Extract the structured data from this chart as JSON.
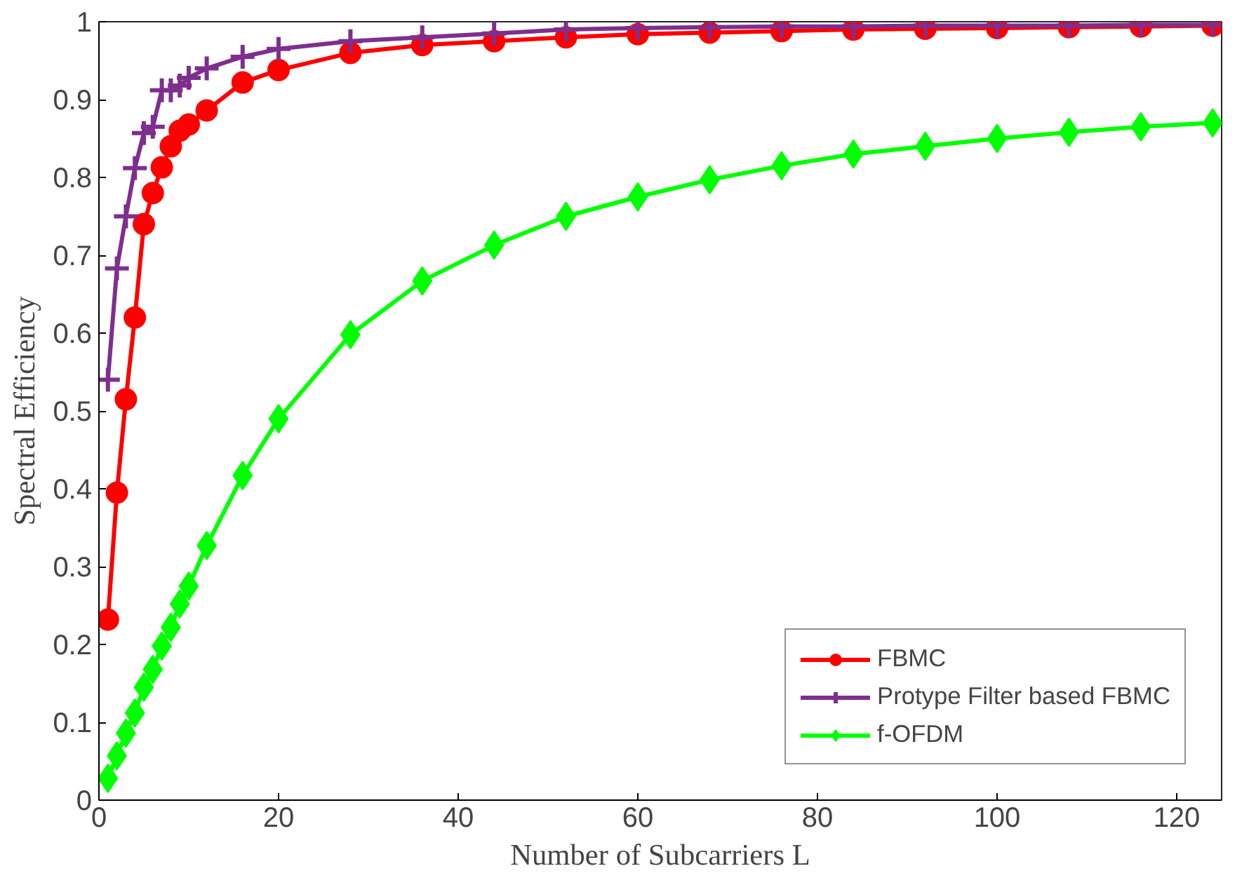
{
  "chart_data": {
    "type": "line",
    "xlabel": "Number of Subcarriers L",
    "ylabel": "Spectral Efficiency",
    "x": [
      1,
      2,
      3,
      4,
      5,
      6,
      7,
      8,
      9,
      10,
      12,
      16,
      20,
      28,
      36,
      44,
      52,
      60,
      68,
      76,
      84,
      92,
      100,
      108,
      116,
      124
    ],
    "series": [
      {
        "name": "FBMC",
        "color": "#ff0000",
        "marker": "circle",
        "values": [
          0.232,
          0.395,
          0.515,
          0.62,
          0.74,
          0.78,
          0.813,
          0.84,
          0.86,
          0.868,
          0.886,
          0.922,
          0.938,
          0.96,
          0.97,
          0.975,
          0.98,
          0.984,
          0.986,
          0.988,
          0.99,
          0.991,
          0.992,
          0.993,
          0.994,
          0.995
        ]
      },
      {
        "name": "Protype Filter based FBMC",
        "color": "#7e2f8e",
        "marker": "cross",
        "values": [
          0.54,
          0.683,
          0.75,
          0.812,
          0.857,
          0.865,
          0.912,
          0.912,
          0.918,
          0.928,
          0.94,
          0.955,
          0.965,
          0.975,
          0.98,
          0.985,
          0.99,
          0.992,
          0.993,
          0.994,
          0.994,
          0.995,
          0.995,
          0.995,
          0.996,
          0.996
        ]
      },
      {
        "name": "f-OFDM",
        "color": "#00ff00",
        "marker": "diamond",
        "values": [
          0.028,
          0.057,
          0.086,
          0.112,
          0.145,
          0.168,
          0.198,
          0.222,
          0.252,
          0.275,
          0.327,
          0.417,
          0.49,
          0.598,
          0.667,
          0.713,
          0.75,
          0.775,
          0.797,
          0.815,
          0.83,
          0.84,
          0.85,
          0.858,
          0.865,
          0.87
        ]
      }
    ],
    "xlim": [
      0,
      125
    ],
    "ylim": [
      0,
      1
    ],
    "xticks": [
      0,
      20,
      40,
      60,
      80,
      100,
      120
    ],
    "yticks": [
      0,
      0.1,
      0.2,
      0.3,
      0.4,
      0.5,
      0.6,
      0.7,
      0.8,
      0.9,
      1
    ],
    "grid": false,
    "legend": "bottom right",
    "line_style": "solid"
  }
}
